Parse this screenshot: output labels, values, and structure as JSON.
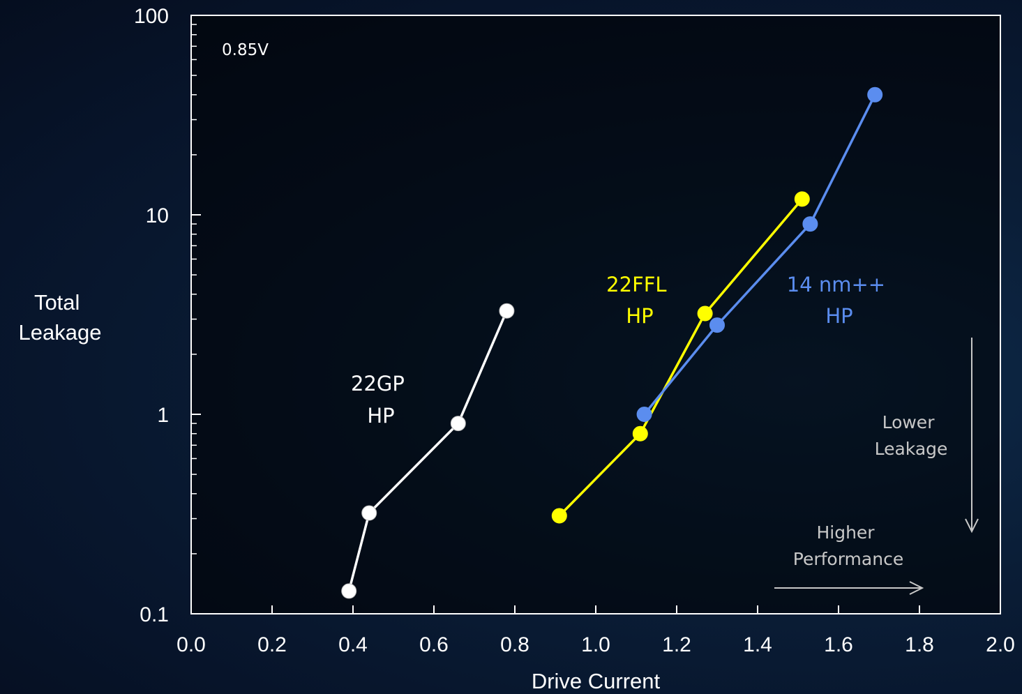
{
  "chart_data": {
    "type": "line",
    "xlabel": "Drive Current",
    "ylabel_lines": [
      "Total",
      "Leakage"
    ],
    "xlim": [
      0.0,
      2.0
    ],
    "ylim": [
      0.1,
      100
    ],
    "yscale": "log",
    "x_ticks": [
      "0.0",
      "0.2",
      "0.4",
      "0.6",
      "0.8",
      "1.0",
      "1.2",
      "1.4",
      "1.6",
      "1.8",
      "2.0"
    ],
    "y_ticks": [
      "0.1",
      "1",
      "10",
      "100"
    ],
    "condition_label": "0.85V",
    "series": [
      {
        "label_lines": [
          "22GP",
          "HP"
        ],
        "color": "#ffffff",
        "x": [
          0.39,
          0.44,
          0.66,
          0.78
        ],
        "y": [
          0.13,
          0.32,
          0.9,
          3.3
        ]
      },
      {
        "label_lines": [
          "22FFL",
          "HP"
        ],
        "color": "#ffff00",
        "x": [
          0.91,
          1.11,
          1.27,
          1.51
        ],
        "y": [
          0.31,
          0.8,
          3.2,
          12.0
        ]
      },
      {
        "label_lines": [
          "14 nm++",
          "HP"
        ],
        "color": "#5b8def",
        "x": [
          1.12,
          1.3,
          1.53,
          1.69
        ],
        "y": [
          1.0,
          2.8,
          9.0,
          40.0
        ]
      }
    ],
    "annotations": {
      "lower_leakage": [
        "Lower",
        "Leakage"
      ],
      "higher_performance": [
        "Higher",
        "Performance"
      ]
    }
  }
}
